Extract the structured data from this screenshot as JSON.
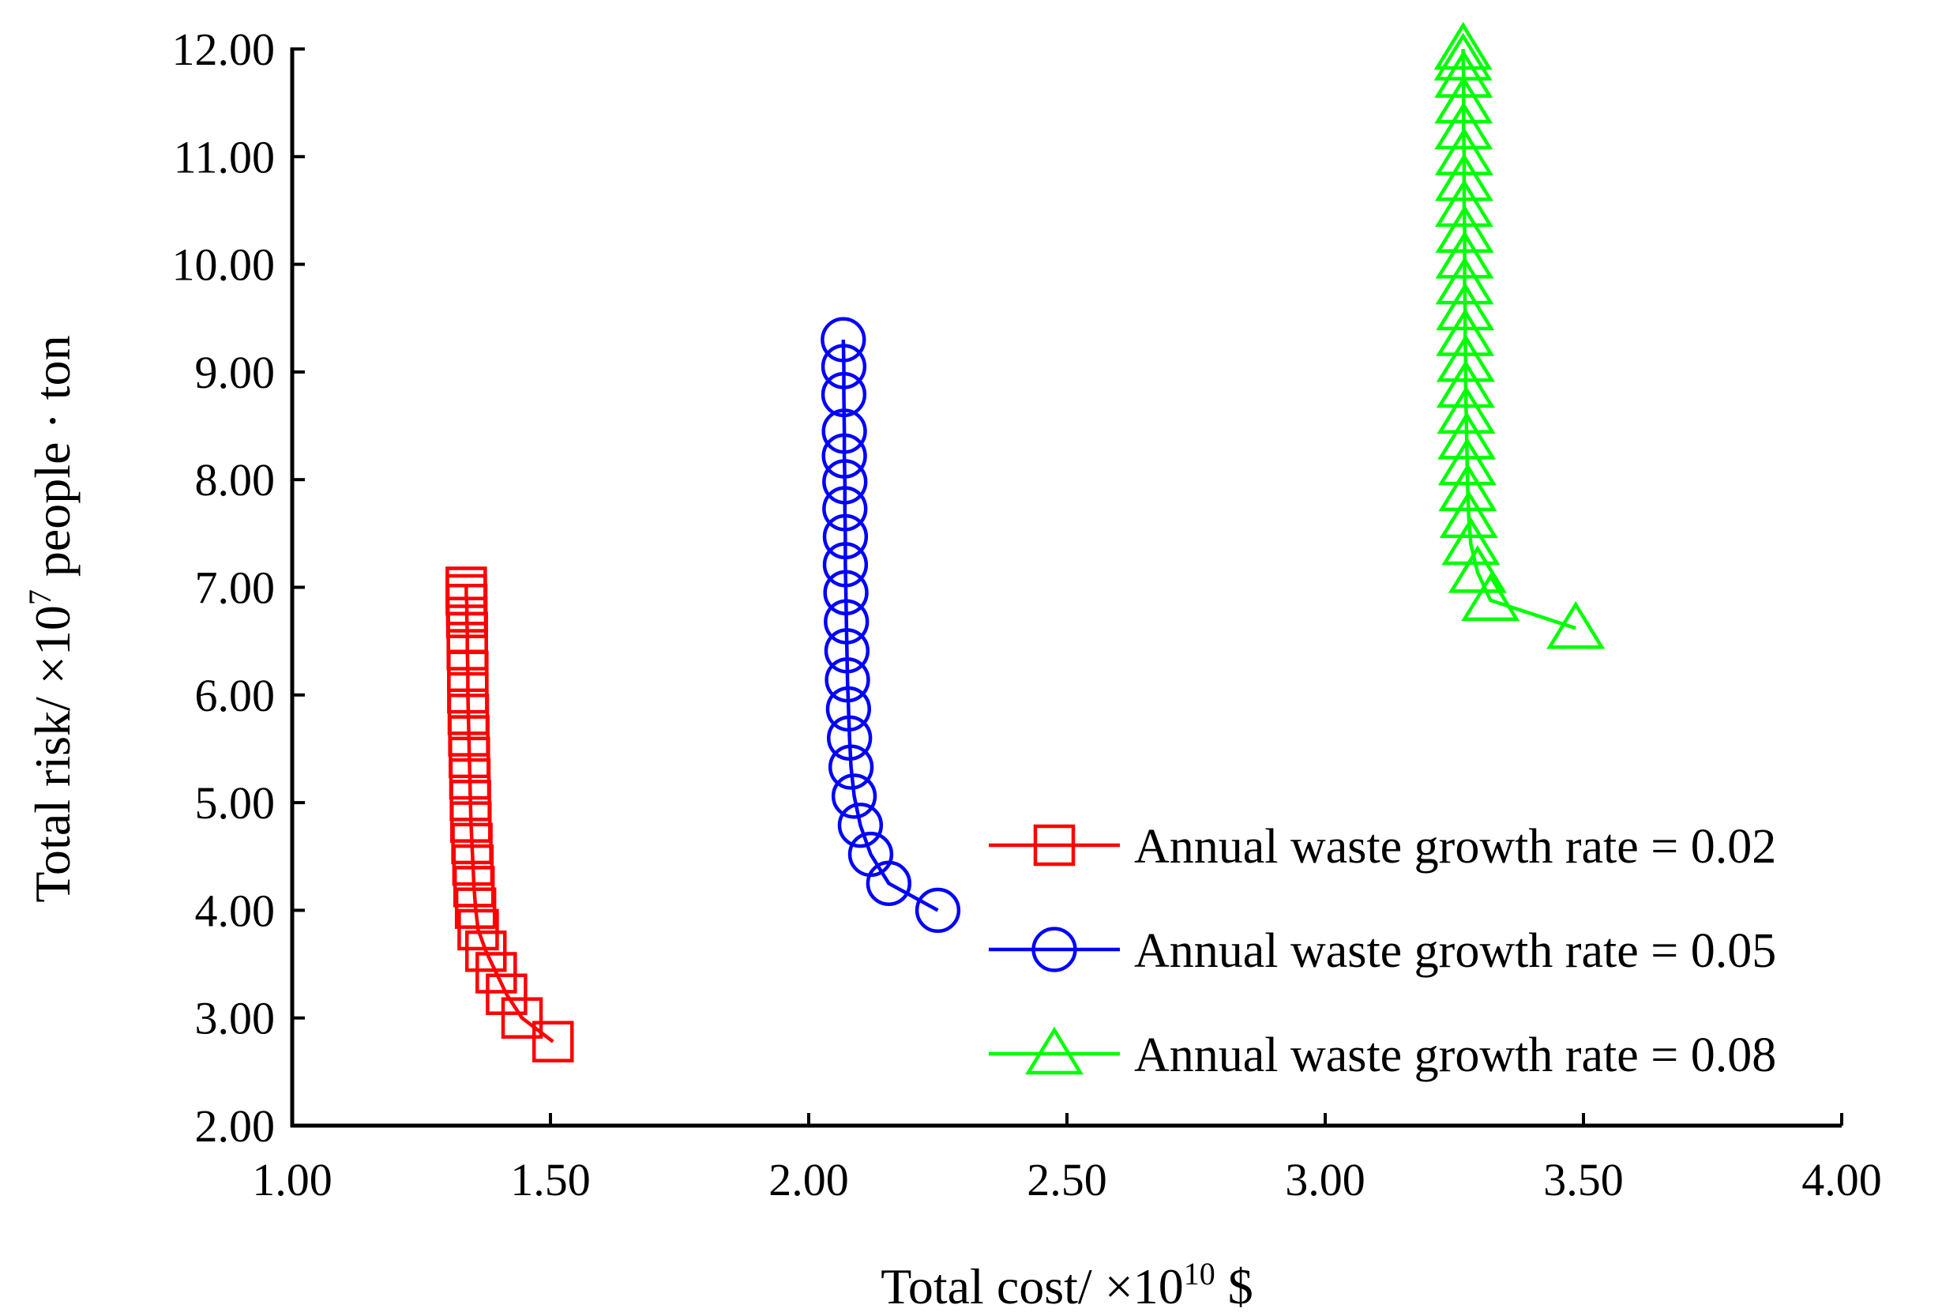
{
  "chart_data": {
    "type": "line",
    "xlabel": {
      "prefix": "Total cost/ ×10",
      "exp": "10",
      "suffix": " $"
    },
    "ylabel": {
      "prefix": "Total risk/ ×10",
      "exp": "7",
      "suffix": " people · ton"
    },
    "xlim": [
      1.0,
      4.0
    ],
    "ylim": [
      2.0,
      12.0
    ],
    "x_ticks": [
      "1.00",
      "1.50",
      "2.00",
      "2.50",
      "3.00",
      "3.50",
      "4.00"
    ],
    "y_ticks": [
      "2.00",
      "3.00",
      "4.00",
      "5.00",
      "6.00",
      "7.00",
      "8.00",
      "9.00",
      "10.00",
      "11.00",
      "12.00"
    ],
    "grid": false,
    "legend_position": "right-center",
    "series": [
      {
        "name": "Annual waste growth rate = 0.02",
        "color": "#ff0000",
        "marker": "square",
        "x": [
          1.505,
          1.445,
          1.415,
          1.395,
          1.375,
          1.36,
          1.355,
          1.352,
          1.35,
          1.348,
          1.346,
          1.345,
          1.344,
          1.343,
          1.342,
          1.341,
          1.34,
          1.34,
          1.339,
          1.339,
          1.338,
          1.338,
          1.337,
          1.337
        ],
        "y": [
          2.78,
          3.0,
          3.22,
          3.42,
          3.62,
          3.82,
          4.02,
          4.22,
          4.42,
          4.62,
          4.82,
          5.02,
          5.22,
          5.42,
          5.62,
          5.82,
          6.02,
          6.22,
          6.42,
          6.58,
          6.72,
          6.84,
          6.93,
          7.0
        ]
      },
      {
        "name": "Annual waste growth rate = 0.05",
        "color": "#0000ff",
        "marker": "circle",
        "x": [
          2.25,
          2.155,
          2.12,
          2.1,
          2.088,
          2.082,
          2.079,
          2.077,
          2.075,
          2.074,
          2.073,
          2.072,
          2.071,
          2.071,
          2.07,
          2.07,
          2.069,
          2.069,
          2.068,
          2.068,
          2.067
        ],
        "y": [
          4.0,
          4.25,
          4.52,
          4.79,
          5.06,
          5.33,
          5.6,
          5.87,
          6.14,
          6.41,
          6.68,
          6.95,
          7.21,
          7.47,
          7.73,
          7.98,
          8.22,
          8.45,
          8.79,
          9.05,
          9.3
        ]
      },
      {
        "name": "Annual waste growth rate = 0.08",
        "color": "#00ff00",
        "marker": "triangle",
        "x": [
          3.485,
          3.32,
          3.295,
          3.282,
          3.278,
          3.276,
          3.275,
          3.274,
          3.273,
          3.272,
          3.272,
          3.271,
          3.271,
          3.27,
          3.27,
          3.27,
          3.269,
          3.269,
          3.269,
          3.268,
          3.268,
          3.268,
          3.267,
          3.267
        ],
        "y": [
          6.62,
          6.88,
          7.14,
          7.4,
          7.65,
          7.9,
          8.14,
          8.38,
          8.62,
          8.86,
          9.1,
          9.34,
          9.58,
          9.82,
          10.06,
          10.3,
          10.54,
          10.78,
          11.02,
          11.26,
          11.5,
          11.74,
          11.9,
          12.0
        ]
      }
    ]
  }
}
